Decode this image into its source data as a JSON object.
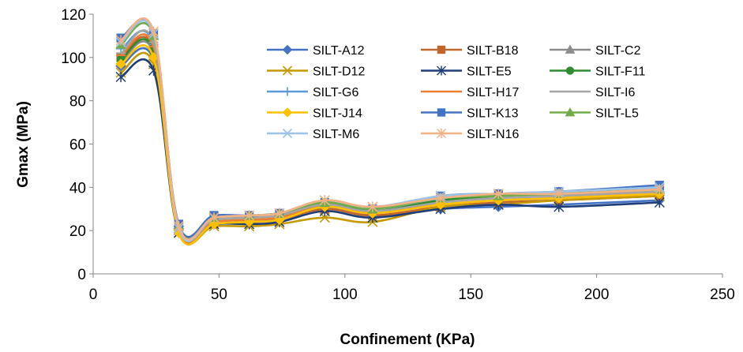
{
  "chart_data": {
    "type": "line",
    "xlabel": "Confinement (KPa)",
    "ylabel": "Gmax (MPa)",
    "xlim": [
      0,
      250
    ],
    "ylim": [
      0,
      120
    ],
    "xticks": [
      0,
      50,
      100,
      150,
      200,
      250
    ],
    "yticks": [
      0,
      20,
      40,
      60,
      80,
      100,
      120
    ],
    "grid": false,
    "legend_position": "top-right",
    "x": [
      11,
      24,
      34,
      48,
      62,
      74,
      92,
      111,
      138,
      161,
      185,
      225
    ],
    "series": [
      {
        "name": "SILT-A12",
        "color": "#4472C4",
        "marker": "diamond",
        "values": [
          96,
          99,
          22,
          23,
          24,
          25,
          31,
          27,
          30,
          31,
          32,
          34
        ]
      },
      {
        "name": "SILT-B18",
        "color": "#C0662A",
        "marker": "square",
        "values": [
          100,
          104,
          21,
          23,
          24,
          25,
          30,
          27,
          31,
          33,
          34,
          36
        ]
      },
      {
        "name": "SILT-C2",
        "color": "#8C8C8C",
        "marker": "triangle",
        "values": [
          98,
          102,
          20,
          24,
          25,
          26,
          32,
          28,
          33,
          35,
          36,
          38
        ]
      },
      {
        "name": "SILT-D12",
        "color": "#C49A00",
        "marker": "x",
        "values": [
          93,
          97,
          19,
          22,
          22,
          23,
          26,
          24,
          31,
          32,
          34,
          36
        ]
      },
      {
        "name": "SILT-E5",
        "color": "#1F3E78",
        "marker": "star",
        "values": [
          91,
          94,
          19,
          23,
          23,
          24,
          29,
          26,
          30,
          32,
          31,
          33
        ]
      },
      {
        "name": "SILT-F11",
        "color": "#2E8B2E",
        "marker": "circle",
        "values": [
          99,
          103,
          21,
          25,
          26,
          27,
          32,
          29,
          34,
          36,
          37,
          39
        ]
      },
      {
        "name": "SILT-G6",
        "color": "#5B9BD5",
        "marker": "plus",
        "values": [
          104,
          106,
          20,
          26,
          27,
          28,
          33,
          30,
          35,
          37,
          38,
          40
        ]
      },
      {
        "name": "SILT-H17",
        "color": "#ED7D31",
        "marker": "dash",
        "values": [
          101,
          105,
          20,
          24,
          25,
          26,
          31,
          28,
          32,
          34,
          35,
          37
        ]
      },
      {
        "name": "SILT-I6",
        "color": "#A5A5A5",
        "marker": "dash",
        "values": [
          102,
          107,
          21,
          25,
          26,
          27,
          32,
          29,
          33,
          35,
          36,
          38
        ]
      },
      {
        "name": "SILT-J14",
        "color": "#FFC000",
        "marker": "diamond",
        "values": [
          97,
          100,
          19,
          23,
          24,
          25,
          31,
          28,
          32,
          34,
          35,
          37
        ]
      },
      {
        "name": "SILT-K13",
        "color": "#4472C4",
        "marker": "square",
        "values": [
          109,
          111,
          23,
          27,
          27,
          28,
          33,
          30,
          36,
          37,
          38,
          41
        ]
      },
      {
        "name": "SILT-L5",
        "color": "#70AD47",
        "marker": "triangle",
        "values": [
          106,
          110,
          22,
          26,
          27,
          28,
          33,
          30,
          35,
          36,
          37,
          39
        ]
      },
      {
        "name": "SILT-M6",
        "color": "#9DC3E6",
        "marker": "x",
        "values": [
          107,
          111,
          21,
          26,
          27,
          28,
          34,
          31,
          36,
          37,
          38,
          40
        ]
      },
      {
        "name": "SILT-N16",
        "color": "#F4B183",
        "marker": "star",
        "values": [
          108,
          112,
          22,
          26,
          27,
          28,
          34,
          31,
          35,
          37,
          37,
          39
        ]
      }
    ]
  }
}
